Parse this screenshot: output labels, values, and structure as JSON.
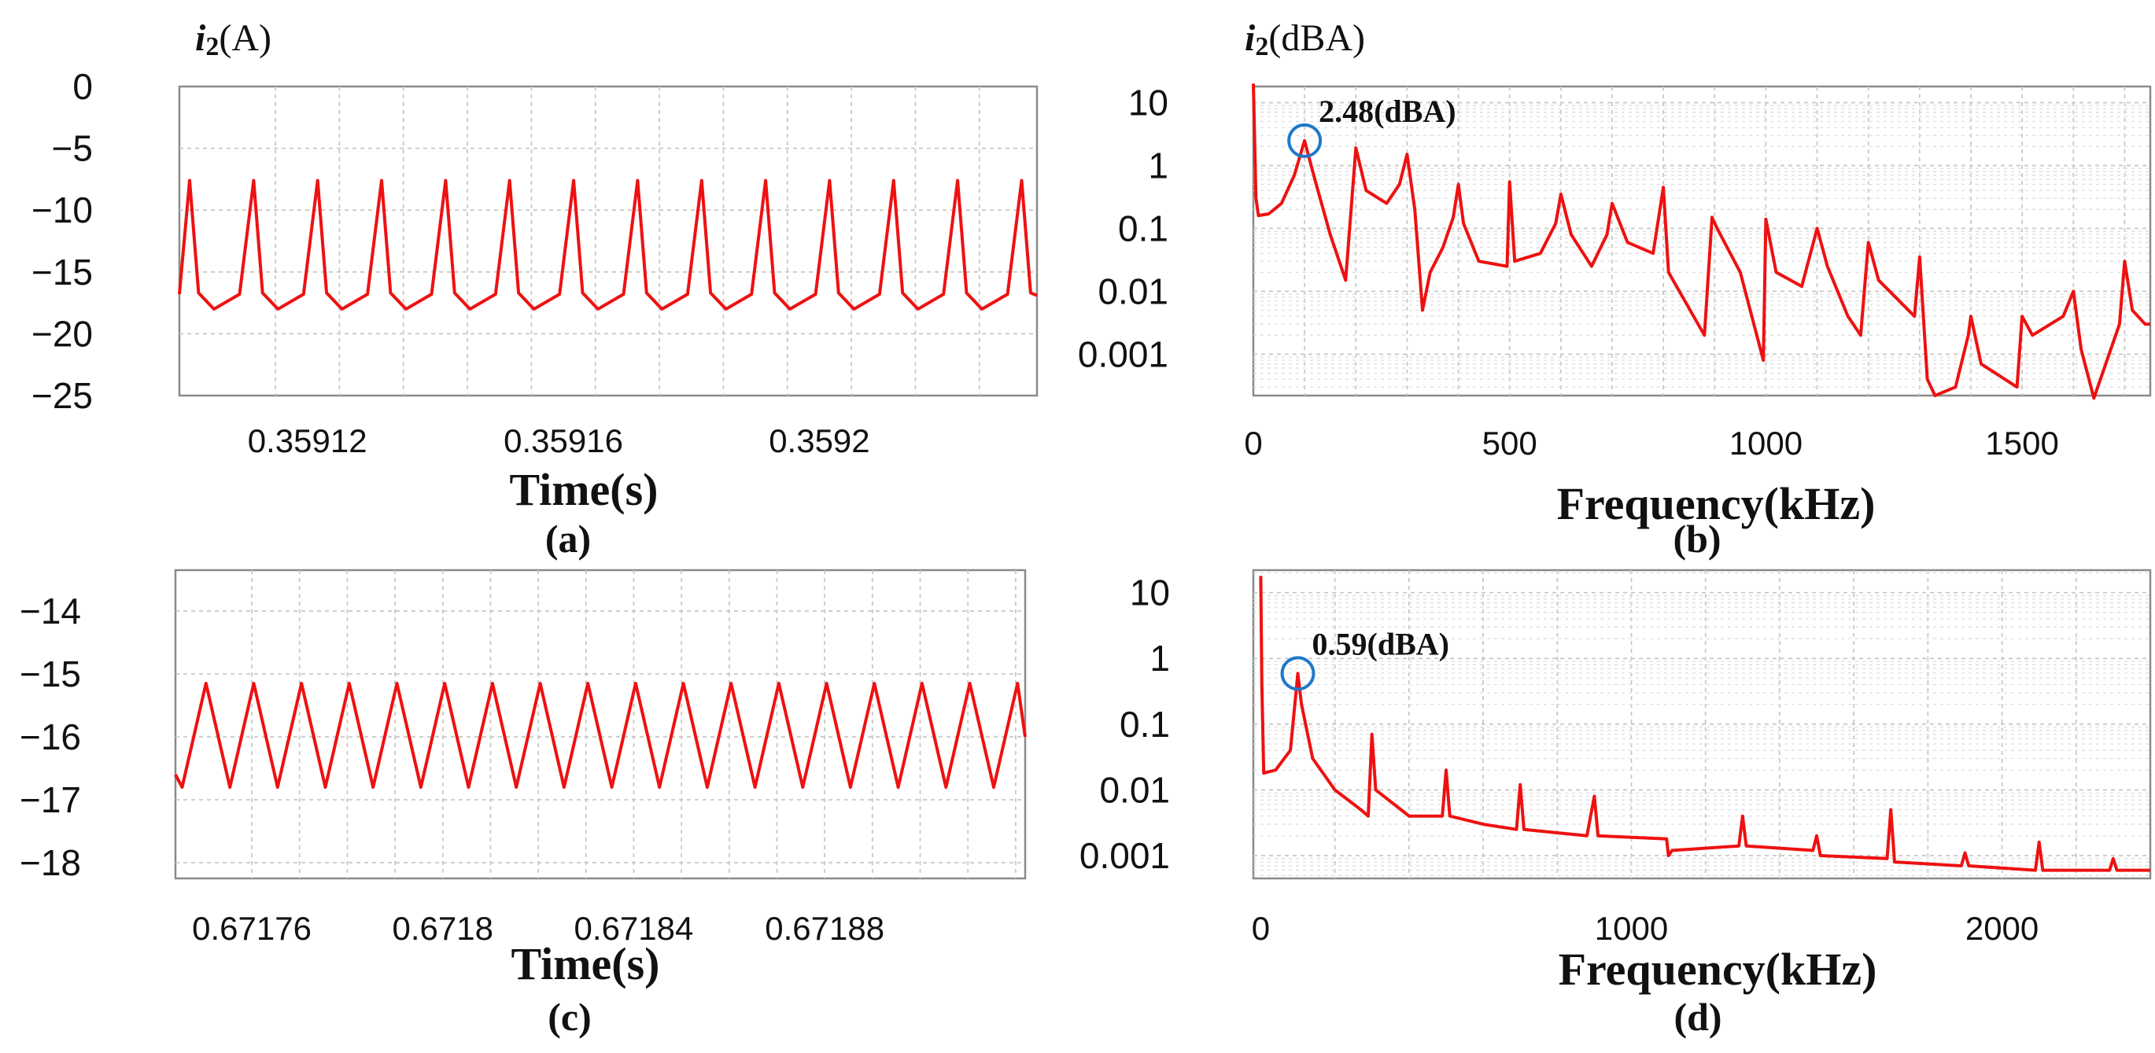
{
  "chart_data": [
    {
      "id": "a",
      "type": "line",
      "panel_label": "(a)",
      "ylabel_var": "i",
      "ylabel_sub": "2",
      "ylabel_unit": "(A)",
      "xlabel": "Time(s)",
      "x_ticks": [
        {
          "v": 0.35912,
          "label": "0.35912"
        },
        {
          "v": 0.35916,
          "label": "0.35916"
        },
        {
          "v": 0.3592,
          "label": "0.3592"
        }
      ],
      "y_ticks": [
        {
          "v": 0,
          "label": "0"
        },
        {
          "v": -5,
          "label": "−5"
        },
        {
          "v": -10,
          "label": "−10"
        },
        {
          "v": -15,
          "label": "−15"
        },
        {
          "v": -20,
          "label": "−20"
        },
        {
          "v": -25,
          "label": "−25"
        }
      ],
      "xlim": [
        0.3591,
        0.359234
      ],
      "ylim": [
        -25,
        0
      ],
      "signal": {
        "kind": "spike",
        "period": 1e-05,
        "phase": 1.6e-06,
        "min": -18,
        "base": -16.8,
        "peak": -7.6
      }
    },
    {
      "id": "b",
      "type": "line",
      "yscale": "log",
      "panel_label": "(b)",
      "ylabel_var": "i",
      "ylabel_sub": "2",
      "ylabel_unit": "(dBA)",
      "xlabel": "Frequency(kHz)",
      "x_ticks": [
        {
          "v": 0,
          "label": "0"
        },
        {
          "v": 500,
          "label": "500"
        },
        {
          "v": 1000,
          "label": "1000"
        },
        {
          "v": 1500,
          "label": "1500"
        }
      ],
      "y_ticks": [
        {
          "v": 10,
          "label": "10"
        },
        {
          "v": 1,
          "label": "1"
        },
        {
          "v": 0.1,
          "label": "0.1"
        },
        {
          "v": 0.01,
          "label": "0.01"
        },
        {
          "v": 0.001,
          "label": "0.001"
        }
      ],
      "xlim": [
        0,
        1750
      ],
      "ylim": [
        0.00022,
        18
      ],
      "annotation": {
        "text": "2.48(dBA)",
        "x": 100,
        "y": 2.48
      },
      "points": [
        [
          0,
          20
        ],
        [
          5,
          0.3
        ],
        [
          10,
          0.16
        ],
        [
          30,
          0.17
        ],
        [
          55,
          0.25
        ],
        [
          80,
          0.7
        ],
        [
          100,
          2.48
        ],
        [
          120,
          0.6
        ],
        [
          150,
          0.08
        ],
        [
          180,
          0.015
        ],
        [
          200,
          1.9
        ],
        [
          220,
          0.4
        ],
        [
          260,
          0.25
        ],
        [
          285,
          0.5
        ],
        [
          300,
          1.5
        ],
        [
          315,
          0.2
        ],
        [
          330,
          0.005
        ],
        [
          345,
          0.02
        ],
        [
          370,
          0.05
        ],
        [
          390,
          0.15
        ],
        [
          400,
          0.5
        ],
        [
          410,
          0.12
        ],
        [
          440,
          0.03
        ],
        [
          495,
          0.025
        ],
        [
          500,
          0.55
        ],
        [
          510,
          0.03
        ],
        [
          560,
          0.04
        ],
        [
          590,
          0.12
        ],
        [
          600,
          0.35
        ],
        [
          620,
          0.08
        ],
        [
          660,
          0.025
        ],
        [
          690,
          0.08
        ],
        [
          700,
          0.25
        ],
        [
          730,
          0.06
        ],
        [
          780,
          0.04
        ],
        [
          800,
          0.45
        ],
        [
          810,
          0.02
        ],
        [
          880,
          0.002
        ],
        [
          895,
          0.15
        ],
        [
          905,
          0.1
        ],
        [
          950,
          0.02
        ],
        [
          995,
          0.0008
        ],
        [
          1000,
          0.14
        ],
        [
          1020,
          0.02
        ],
        [
          1070,
          0.012
        ],
        [
          1100,
          0.1
        ],
        [
          1120,
          0.025
        ],
        [
          1160,
          0.004
        ],
        [
          1185,
          0.002
        ],
        [
          1200,
          0.06
        ],
        [
          1220,
          0.015
        ],
        [
          1290,
          0.004
        ],
        [
          1300,
          0.035
        ],
        [
          1315,
          0.0004
        ],
        [
          1330,
          0.00022
        ],
        [
          1370,
          0.0003
        ],
        [
          1395,
          0.002
        ],
        [
          1400,
          0.004
        ],
        [
          1420,
          0.0007
        ],
        [
          1490,
          0.0003
        ],
        [
          1500,
          0.004
        ],
        [
          1520,
          0.002
        ],
        [
          1580,
          0.004
        ],
        [
          1600,
          0.01
        ],
        [
          1615,
          0.0012
        ],
        [
          1640,
          0.0002
        ],
        [
          1690,
          0.003
        ],
        [
          1700,
          0.03
        ],
        [
          1715,
          0.005
        ],
        [
          1740,
          0.003
        ],
        [
          1750,
          0.003
        ]
      ]
    },
    {
      "id": "c",
      "type": "line",
      "panel_label": "(c)",
      "ylabel_var": "",
      "ylabel_sub": "",
      "ylabel_unit": "",
      "xlabel": "Time(s)",
      "x_ticks": [
        {
          "v": 0.67176,
          "label": "0.67176"
        },
        {
          "v": 0.6718,
          "label": "0.6718"
        },
        {
          "v": 0.67184,
          "label": "0.67184"
        },
        {
          "v": 0.67188,
          "label": "0.67188"
        }
      ],
      "y_ticks": [
        {
          "v": -14,
          "label": "−14"
        },
        {
          "v": -15,
          "label": "−15"
        },
        {
          "v": -16,
          "label": "−16"
        },
        {
          "v": -17,
          "label": "−17"
        },
        {
          "v": -18,
          "label": "−18"
        }
      ],
      "xlim": [
        0.671744,
        0.671922
      ],
      "ylim": [
        -18.25,
        -13.35
      ],
      "signal": {
        "kind": "triangle",
        "period": 1e-05,
        "phase": 6.4e-06,
        "min": -16.8,
        "max": -15.15
      }
    },
    {
      "id": "d",
      "type": "line",
      "yscale": "log",
      "panel_label": "(d)",
      "ylabel_var": "",
      "ylabel_sub": "",
      "ylabel_unit": "",
      "xlabel": "Frequency(kHz)",
      "x_ticks": [
        {
          "v": 0,
          "label": "0"
        },
        {
          "v": 1000,
          "label": "1000"
        },
        {
          "v": 2000,
          "label": "2000"
        }
      ],
      "y_ticks": [
        {
          "v": 10,
          "label": "10"
        },
        {
          "v": 1,
          "label": "1"
        },
        {
          "v": 0.1,
          "label": "0.1"
        },
        {
          "v": 0.01,
          "label": "0.01"
        },
        {
          "v": 0.001,
          "label": "0.001"
        }
      ],
      "xlim": [
        -20,
        2400
      ],
      "ylim": [
        0.00045,
        22
      ],
      "annotation": {
        "text": "0.59(dBA)",
        "x": 100,
        "y": 0.59
      },
      "points": [
        [
          0,
          18
        ],
        [
          3,
          0.4
        ],
        [
          8,
          0.018
        ],
        [
          40,
          0.02
        ],
        [
          80,
          0.04
        ],
        [
          95,
          0.3
        ],
        [
          100,
          0.59
        ],
        [
          110,
          0.2
        ],
        [
          140,
          0.03
        ],
        [
          200,
          0.01
        ],
        [
          270,
          0.005
        ],
        [
          290,
          0.004
        ],
        [
          300,
          0.07
        ],
        [
          310,
          0.01
        ],
        [
          400,
          0.004
        ],
        [
          490,
          0.004
        ],
        [
          500,
          0.02
        ],
        [
          510,
          0.004
        ],
        [
          600,
          0.003
        ],
        [
          690,
          0.0025
        ],
        [
          700,
          0.012
        ],
        [
          710,
          0.0025
        ],
        [
          880,
          0.002
        ],
        [
          900,
          0.008
        ],
        [
          910,
          0.002
        ],
        [
          1095,
          0.0018
        ],
        [
          1100,
          0.001
        ],
        [
          1110,
          0.0012
        ],
        [
          1290,
          0.0014
        ],
        [
          1300,
          0.004
        ],
        [
          1310,
          0.0014
        ],
        [
          1490,
          0.0012
        ],
        [
          1500,
          0.002
        ],
        [
          1510,
          0.001
        ],
        [
          1690,
          0.0009
        ],
        [
          1700,
          0.005
        ],
        [
          1710,
          0.0008
        ],
        [
          1890,
          0.0007
        ],
        [
          1900,
          0.0011
        ],
        [
          1910,
          0.0007
        ],
        [
          2090,
          0.0006
        ],
        [
          2100,
          0.0016
        ],
        [
          2110,
          0.0006
        ],
        [
          2290,
          0.0006
        ],
        [
          2300,
          0.0009
        ],
        [
          2310,
          0.0006
        ],
        [
          2400,
          0.0006
        ]
      ]
    }
  ]
}
